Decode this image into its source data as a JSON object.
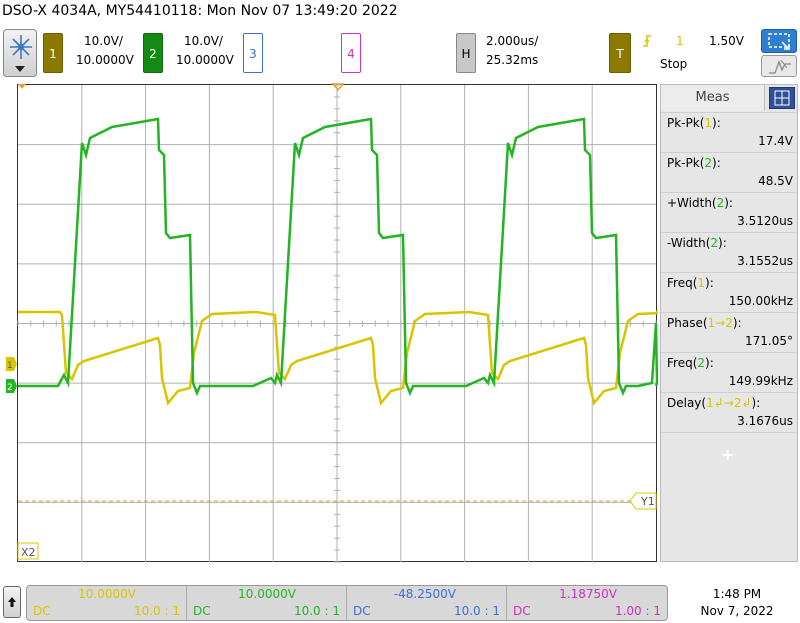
{
  "header": {
    "title": "DSO-X 4034A, MY54410118: Mon Nov 07 13:49:20 2022"
  },
  "colors": {
    "ch1": "#d8c400",
    "ch2": "#22b422",
    "ch3": "#3b6fd8",
    "ch4": "#d030c0",
    "trigger_level": "#e8a030"
  },
  "channels": [
    {
      "num": "1",
      "scale": "10.0V/",
      "offset": "10.0000V"
    },
    {
      "num": "2",
      "scale": "10.0V/",
      "offset": "10.0000V"
    },
    {
      "num": "3"
    },
    {
      "num": "4"
    }
  ],
  "horizontal": {
    "label": "H",
    "scale": "2.000us/",
    "position": "25.32ms"
  },
  "trigger": {
    "label": "T",
    "source": "1",
    "level": "1.50V",
    "status": "Stop"
  },
  "markers": {
    "y1": "Y1",
    "x2": "X2",
    "ch1_ground": "1",
    "ch2_ground": "2"
  },
  "measurements": {
    "tab": "Meas",
    "items": [
      {
        "label_pre": "Pk-Pk(",
        "src": "1",
        "label_post": "):",
        "value": "17.4V"
      },
      {
        "label_pre": "Pk-Pk(",
        "src": "2",
        "label_post": "):",
        "value": "48.5V"
      },
      {
        "label_pre": "+Width(",
        "src": "2",
        "label_post": "):",
        "value": "3.5120us"
      },
      {
        "label_pre": "-Width(",
        "src": "2",
        "label_post": "):",
        "value": "3.1552us"
      },
      {
        "label_pre": "Freq(",
        "src": "1",
        "label_post": "):",
        "value": "150.00kHz"
      },
      {
        "label_pre": "Phase(",
        "src": "1→2",
        "label_post": "):",
        "value": "171.05°"
      },
      {
        "label_pre": "Freq(",
        "src": "2",
        "label_post": "):",
        "value": "149.99kHz"
      },
      {
        "label_pre": "Delay(",
        "src": "1↲→2↲",
        "label_post": "):",
        "value": "3.1676us"
      }
    ],
    "add": "+"
  },
  "bottom": [
    {
      "offset": "10.0000V",
      "coupling": "DC",
      "ratio": "10.0 : 1"
    },
    {
      "offset": "10.0000V",
      "coupling": "DC",
      "ratio": "10.0 : 1"
    },
    {
      "offset": "-48.2500V",
      "coupling": "DC",
      "ratio": "10.0 : 1"
    },
    {
      "offset": "1.18750V",
      "coupling": "DC",
      "ratio": "1.00 : 1"
    }
  ],
  "clock": {
    "time": "1:48 PM",
    "date": "Nov 7, 2022"
  }
}
